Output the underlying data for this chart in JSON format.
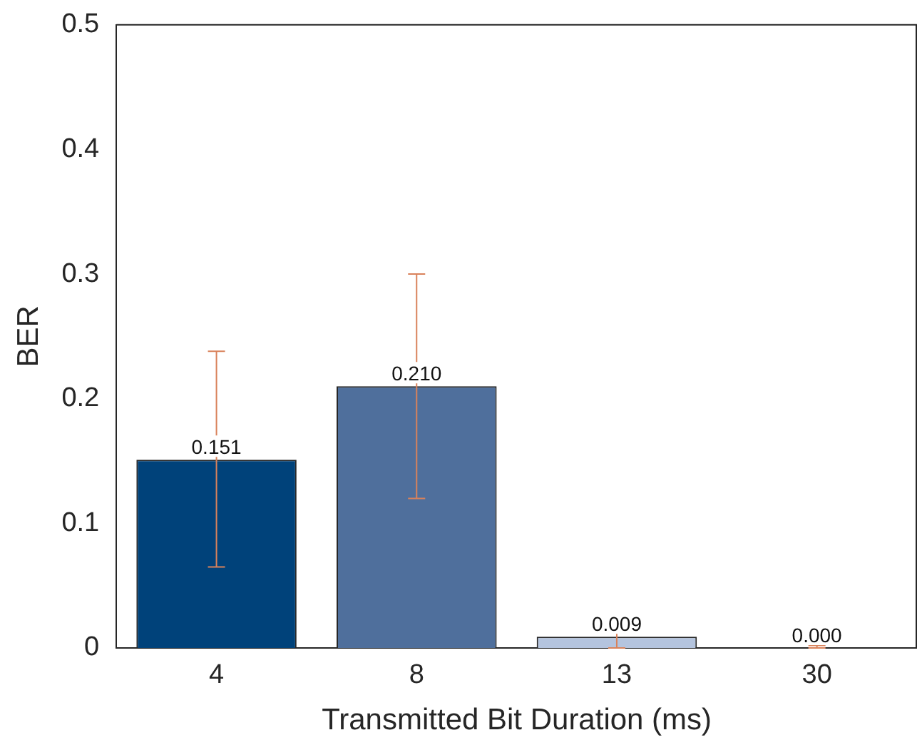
{
  "chart_data": {
    "type": "bar",
    "xlabel": "Transmitted Bit Duration (ms)",
    "ylabel": "BER",
    "categories": [
      "4",
      "8",
      "13",
      "30"
    ],
    "values": [
      0.151,
      0.21,
      0.009,
      0.0
    ],
    "value_labels": [
      "0.151",
      "0.210",
      "0.009",
      "0.000"
    ],
    "colors": [
      "#00427a",
      "#4f6f9c",
      "#b4c4de",
      "#dde4f0"
    ],
    "errors": [
      [
        0.065,
        0.238
      ],
      [
        0.12,
        0.3
      ],
      [
        0,
        0.022
      ],
      [
        0,
        0.002
      ]
    ],
    "ylim": [
      0,
      0.5
    ],
    "yticks": [
      0,
      0.1,
      0.2,
      0.3,
      0.4,
      0.5
    ],
    "grid": false,
    "legend": false
  }
}
